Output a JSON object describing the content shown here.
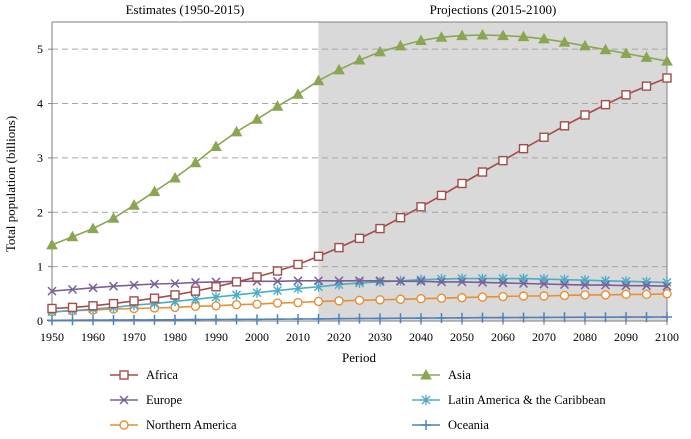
{
  "chart_data": {
    "type": "line",
    "period_labels": {
      "estimates": "Estimates (1950-2015)",
      "projections": "Projections (2015-2100)"
    },
    "projection_start": 2015,
    "xlabel": "Period",
    "ylabel": "Total population (billions)",
    "xlim": [
      1950,
      2100
    ],
    "ylim": [
      0,
      5.5
    ],
    "x_ticks": [
      1950,
      1960,
      1970,
      1980,
      1990,
      2000,
      2010,
      2020,
      2030,
      2040,
      2050,
      2060,
      2070,
      2080,
      2090,
      2100
    ],
    "y_ticks": [
      0,
      1,
      2,
      3,
      4,
      5
    ],
    "gridlines": "horizontal dashed",
    "x": [
      1950,
      1955,
      1960,
      1965,
      1970,
      1975,
      1980,
      1985,
      1990,
      1995,
      2000,
      2005,
      2010,
      2015,
      2020,
      2025,
      2030,
      2035,
      2040,
      2045,
      2050,
      2055,
      2060,
      2065,
      2070,
      2075,
      2080,
      2085,
      2090,
      2095,
      2100
    ],
    "series": [
      {
        "name": "Africa",
        "color": "#a34d4b",
        "marker": "square",
        "values": [
          0.23,
          0.25,
          0.28,
          0.32,
          0.37,
          0.42,
          0.48,
          0.55,
          0.63,
          0.72,
          0.81,
          0.92,
          1.04,
          1.19,
          1.35,
          1.52,
          1.7,
          1.9,
          2.1,
          2.31,
          2.53,
          2.74,
          2.95,
          3.17,
          3.38,
          3.59,
          3.79,
          3.98,
          4.16,
          4.32,
          4.47
        ]
      },
      {
        "name": "Asia",
        "color": "#8aa653",
        "marker": "triangle",
        "values": [
          1.4,
          1.55,
          1.7,
          1.89,
          2.13,
          2.38,
          2.63,
          2.91,
          3.21,
          3.48,
          3.71,
          3.95,
          4.17,
          4.42,
          4.62,
          4.8,
          4.95,
          5.06,
          5.16,
          5.22,
          5.25,
          5.26,
          5.25,
          5.23,
          5.19,
          5.13,
          5.06,
          4.99,
          4.92,
          4.85,
          4.78
        ]
      },
      {
        "name": "Europe",
        "color": "#7a6096",
        "marker": "x",
        "values": [
          0.55,
          0.58,
          0.61,
          0.64,
          0.66,
          0.68,
          0.69,
          0.71,
          0.72,
          0.73,
          0.73,
          0.73,
          0.74,
          0.74,
          0.74,
          0.74,
          0.74,
          0.73,
          0.73,
          0.72,
          0.72,
          0.71,
          0.7,
          0.69,
          0.68,
          0.67,
          0.66,
          0.66,
          0.65,
          0.65,
          0.64
        ]
      },
      {
        "name": "Latin America & the Caribbean",
        "color": "#4bacc6",
        "marker": "star",
        "values": [
          0.17,
          0.19,
          0.22,
          0.25,
          0.29,
          0.32,
          0.36,
          0.4,
          0.44,
          0.48,
          0.52,
          0.56,
          0.6,
          0.63,
          0.67,
          0.7,
          0.72,
          0.74,
          0.76,
          0.77,
          0.78,
          0.78,
          0.78,
          0.78,
          0.77,
          0.76,
          0.75,
          0.74,
          0.73,
          0.72,
          0.71
        ]
      },
      {
        "name": "Northern America",
        "color": "#e88e36",
        "marker": "circle",
        "values": [
          0.17,
          0.19,
          0.2,
          0.22,
          0.23,
          0.24,
          0.25,
          0.27,
          0.28,
          0.3,
          0.31,
          0.33,
          0.34,
          0.36,
          0.37,
          0.38,
          0.39,
          0.4,
          0.41,
          0.42,
          0.43,
          0.44,
          0.45,
          0.46,
          0.46,
          0.47,
          0.48,
          0.48,
          0.49,
          0.49,
          0.5
        ]
      },
      {
        "name": "Oceania",
        "color": "#4f81bd",
        "marker": "plus",
        "values": [
          0.013,
          0.014,
          0.016,
          0.018,
          0.02,
          0.021,
          0.023,
          0.025,
          0.027,
          0.029,
          0.031,
          0.033,
          0.036,
          0.039,
          0.043,
          0.046,
          0.048,
          0.051,
          0.054,
          0.056,
          0.058,
          0.061,
          0.063,
          0.065,
          0.066,
          0.068,
          0.069,
          0.07,
          0.071,
          0.072,
          0.073
        ]
      }
    ],
    "legend_position": "bottom, two columns"
  }
}
